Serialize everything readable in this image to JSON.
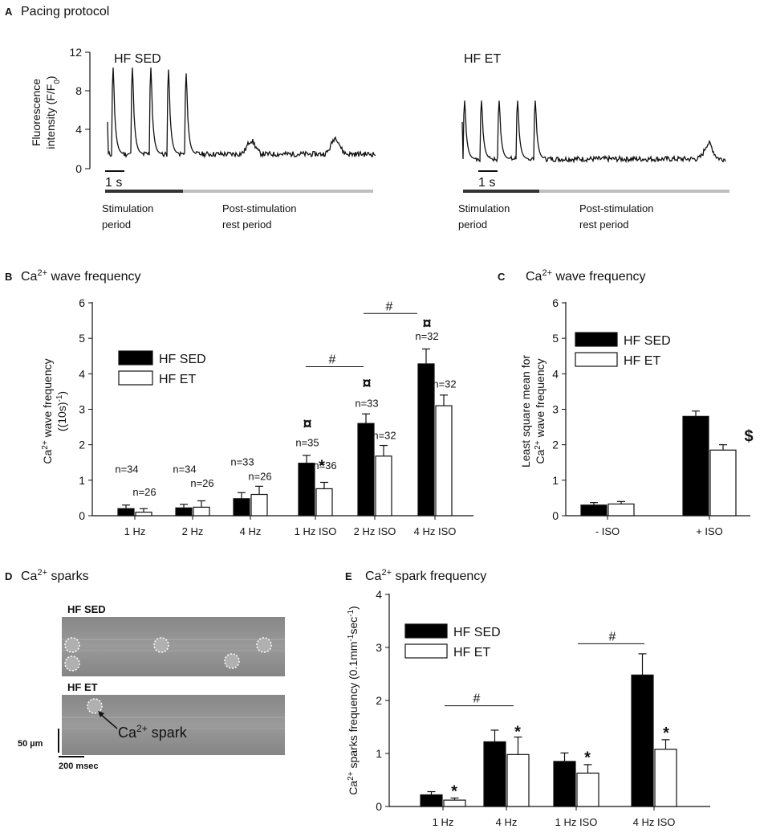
{
  "panel_labels": {
    "A": "A",
    "B": "B",
    "C": "C",
    "D": "D",
    "E": "E"
  },
  "titles": {
    "A": "Pacing protocol",
    "B_pre": "Ca",
    "B_sup": "2+",
    "B_post": " wave frequency",
    "C_pre": "Ca",
    "C_sup": "2+",
    "C_post": " wave frequency",
    "D_pre": "Ca",
    "D_sup": "2+",
    "D_post": " sparks",
    "E_pre": "Ca",
    "E_sup": "2+",
    "E_post": "  spark frequency"
  },
  "panelA": {
    "ylabel_line1": "Fluorescence",
    "ylabel_line2_pre": "intensity (F/F",
    "ylabel_line2_sub": "0",
    "ylabel_line2_post": ")",
    "yticks": [
      "0",
      "4",
      "8",
      "12"
    ],
    "left_group": "HF SED",
    "right_group": "HF ET",
    "scalebar": "1 s",
    "stim_line1": "Stimulation",
    "stim_line2": "period",
    "post_line1": "Post-stimulation",
    "post_line2": "rest period",
    "colors": {
      "stim_bar": "#333333",
      "rest_bar": "#bfbfbf"
    }
  },
  "panelD": {
    "top_label": "HF SED",
    "bottom_label": "HF ET",
    "spark_pre": "Ca",
    "spark_sup": "2+",
    "spark_post": " spark",
    "scale_vertical": "50 µm",
    "scale_horizontal": "200 msec"
  },
  "chart_data": [
    {
      "id": "B",
      "type": "bar",
      "ylabel_pre": "Ca",
      "ylabel_sup": "2+",
      "ylabel_post": " wave frequency",
      "ylabel_line2": "((10s)",
      "ylabel_line2_sup": "-1",
      "ylabel_line2_post": ")",
      "categories": [
        "1 Hz",
        "2 Hz",
        "4 Hz",
        "1 Hz ISO",
        "2 Hz ISO",
        "4 Hz ISO"
      ],
      "yticks": [
        "0",
        "1",
        "2",
        "3",
        "4",
        "5",
        "6"
      ],
      "ylim": [
        0,
        6
      ],
      "series": [
        {
          "name": "HF SED",
          "color": "#000000",
          "values": [
            0.2,
            0.22,
            0.48,
            1.48,
            2.6,
            4.28
          ],
          "errors": [
            0.1,
            0.1,
            0.17,
            0.22,
            0.27,
            0.42
          ],
          "n": [
            "n=34",
            "n=34",
            "n=33",
            "n=35",
            "n=33",
            "n=32"
          ]
        },
        {
          "name": "HF ET",
          "color": "#ffffff",
          "values": [
            0.1,
            0.24,
            0.6,
            0.76,
            1.68,
            3.1
          ],
          "errors": [
            0.1,
            0.18,
            0.23,
            0.18,
            0.3,
            0.3
          ],
          "n": [
            "n=26",
            "n=26",
            "n=26",
            "n=36",
            "n=32",
            "n=32"
          ]
        }
      ],
      "annotations": {
        "currency": "¤",
        "star": "*",
        "hash": "#"
      },
      "legend_position": "top-left"
    },
    {
      "id": "C",
      "type": "bar",
      "ylabel_line1": "Least square mean for",
      "ylabel_pre": "Ca",
      "ylabel_sup": "2+",
      "ylabel_post": " wave frequency",
      "categories": [
        "- ISO",
        "+ ISO"
      ],
      "yticks": [
        "0",
        "1",
        "2",
        "3",
        "4",
        "5",
        "6"
      ],
      "ylim": [
        0,
        6
      ],
      "series": [
        {
          "name": "HF SED",
          "color": "#000000",
          "values": [
            0.3,
            2.8
          ],
          "errors": [
            0.07,
            0.15
          ]
        },
        {
          "name": "HF ET",
          "color": "#ffffff",
          "values": [
            0.33,
            1.85
          ],
          "errors": [
            0.07,
            0.15
          ]
        }
      ],
      "annotations": {
        "dollar": "$"
      },
      "legend_position": "top-left"
    },
    {
      "id": "E",
      "type": "bar",
      "ylabel_pre": "Ca",
      "ylabel_sup": "2+",
      "ylabel_post": " sparks frequency (0.1mm",
      "ylabel_sup2": "-1",
      "ylabel_mid": "sec",
      "ylabel_sup3": "-1",
      "ylabel_end": ")",
      "categories": [
        "1 Hz",
        "4 Hz",
        "1 Hz ISO",
        "4 Hz ISO"
      ],
      "yticks": [
        "0",
        "1",
        "2",
        "3",
        "4"
      ],
      "ylim": [
        0,
        4
      ],
      "series": [
        {
          "name": "HF SED",
          "color": "#000000",
          "values": [
            0.22,
            1.22,
            0.85,
            2.48
          ],
          "errors": [
            0.06,
            0.22,
            0.16,
            0.4
          ]
        },
        {
          "name": "HF ET",
          "color": "#ffffff",
          "values": [
            0.12,
            0.98,
            0.63,
            1.08
          ],
          "errors": [
            0.04,
            0.33,
            0.16,
            0.18
          ]
        }
      ],
      "annotations": {
        "star": "*",
        "hash": "#"
      },
      "legend_position": "top-left"
    }
  ]
}
